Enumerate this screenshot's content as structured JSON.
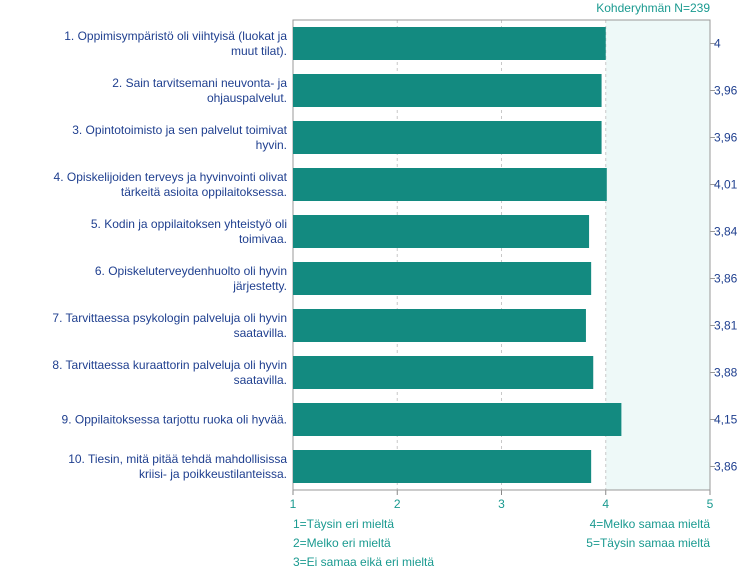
{
  "chart_data": {
    "type": "bar",
    "orientation": "horizontal",
    "title": "Kohderyhmän N=239",
    "categories": [
      "1. Oppimisympäristö oli viihtyisä (luokat ja muut tilat).",
      "2. Sain tarvitsemani neuvonta- ja ohjauspalvelut.",
      "3. Opintotoimisto ja sen palvelut toimivat hyvin.",
      "4. Opiskelijoiden terveys ja hyvinvointi olivat tärkeitä asioita oppilaitoksessa.",
      "5. Kodin ja oppilaitoksen yhteistyö oli toimivaa.",
      "6. Opiskeluterveydenhuolto oli hyvin järjestetty.",
      "7. Tarvittaessa psykologin palveluja oli hyvin saatavilla.",
      "8. Tarvittaessa kuraattorin palveluja oli hyvin saatavilla.",
      "9. Oppilaitoksessa tarjottu ruoka oli hyvää.",
      "10. Tiesin, mitä pitää tehdä mahdollisissa kriisi- ja poikkeustilanteissa."
    ],
    "values": [
      4,
      3.96,
      3.96,
      4.01,
      3.84,
      3.86,
      3.81,
      3.88,
      4.15,
      3.86
    ],
    "value_labels": [
      "4",
      "3,96",
      "3,96",
      "4,01",
      "3,84",
      "3,86",
      "3,81",
      "3,88",
      "4,15",
      "3,86"
    ],
    "color": "#138a80",
    "xlim": [
      1,
      5
    ],
    "xticks": [
      1,
      2,
      3,
      4,
      5
    ],
    "grid": true,
    "notes_left": [
      "1=Täysin eri mieltä",
      "2=Melko eri mieltä",
      "3=Ei samaa eikä eri mieltä"
    ],
    "notes_right": [
      "4=Melko samaa mieltä",
      "5=Täysin samaa mieltä"
    ]
  }
}
